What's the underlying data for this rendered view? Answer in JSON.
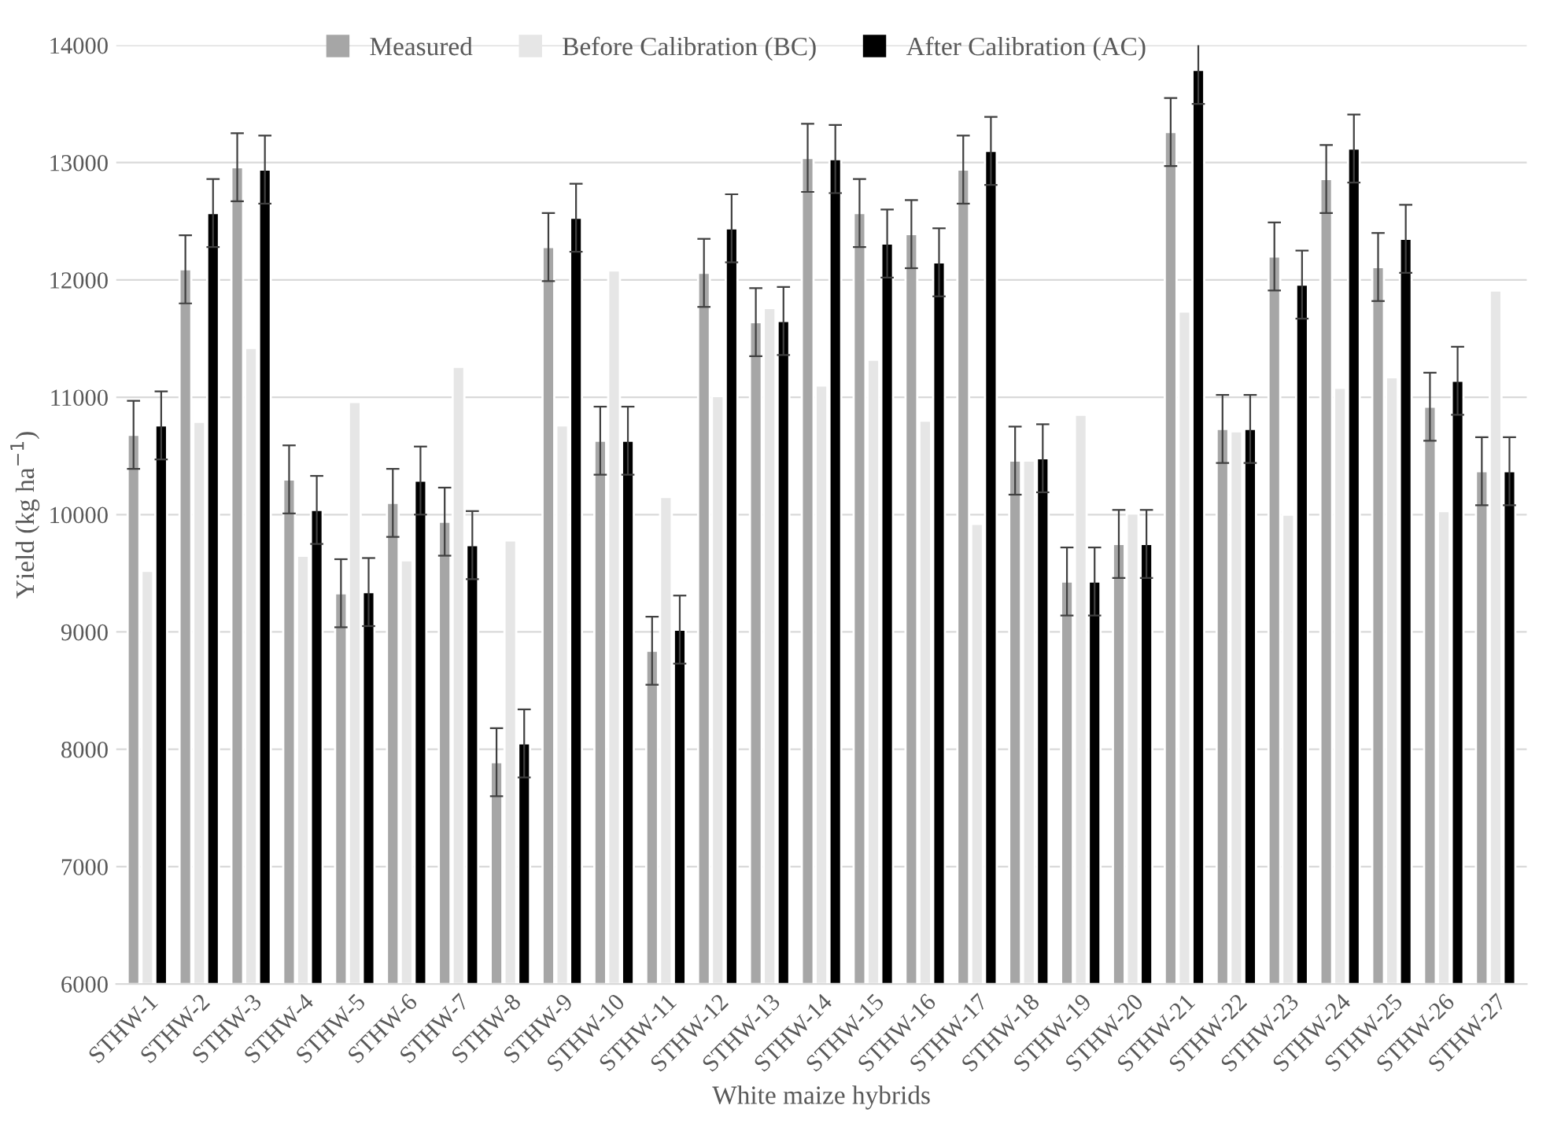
{
  "chart_data": {
    "type": "bar",
    "xlabel": "White maize hybrids",
    "ylabel": "Yield (kg ha$^{−1}$)",
    "categories": [
      "STHW-1",
      "STHW-2",
      "STHW-3",
      "STHW-4",
      "STHW-5",
      "STHW-6",
      "STHW-7",
      "STHW-8",
      "STHW-9",
      "STHW-10",
      "STHW-11",
      "STHW-12",
      "STHW-13",
      "STHW-14",
      "STHW-15",
      "STHW-16",
      "STHW-17",
      "STHW-18",
      "STHW-19",
      "STHW-20",
      "STHW-21",
      "STHW-22",
      "STHW-23",
      "STHW-24",
      "STHW-25",
      "STHW-26",
      "STHW-27"
    ],
    "series": [
      {
        "name": "Measured",
        "color": "#a6a6a6",
        "values": [
          10680,
          12090,
          12960,
          10300,
          9330,
          10100,
          9940,
          7890,
          12280,
          10630,
          8840,
          12060,
          11640,
          13040,
          12570,
          12390,
          12940,
          10460,
          9430,
          9750,
          13260,
          10730,
          12200,
          12860,
          12110,
          10920,
          10370
        ],
        "errors": [
          290,
          290,
          290,
          290,
          290,
          290,
          290,
          290,
          290,
          290,
          290,
          290,
          290,
          290,
          290,
          290,
          290,
          290,
          290,
          290,
          290,
          290,
          290,
          290,
          290,
          290,
          290
        ]
      },
      {
        "name": "Before Calibration (BC)",
        "color": "#e6e6e6",
        "values": [
          9520,
          10790,
          11420,
          9650,
          10960,
          9610,
          11260,
          9780,
          10760,
          12080,
          10150,
          11010,
          11760,
          11100,
          11320,
          10800,
          9920,
          10460,
          10850,
          10010,
          11730,
          10710,
          10000,
          11080,
          11170,
          10030,
          11910
        ]
      },
      {
        "name": "After Calibration (AC)",
        "color": "#000000",
        "values": [
          10760,
          12570,
          12940,
          10040,
          9340,
          10290,
          9740,
          8050,
          12530,
          10630,
          9020,
          12440,
          11650,
          13030,
          12310,
          12150,
          13100,
          10480,
          9430,
          9750,
          13790,
          10730,
          11960,
          13120,
          12350,
          11140,
          10370
        ],
        "errors": [
          290,
          290,
          290,
          290,
          290,
          290,
          290,
          290,
          290,
          290,
          290,
          290,
          290,
          290,
          290,
          290,
          290,
          290,
          290,
          290,
          290,
          290,
          290,
          290,
          290,
          290,
          290
        ]
      }
    ],
    "ylim": [
      6000,
      14000
    ],
    "yticks": [
      6000,
      7000,
      8000,
      9000,
      10000,
      11000,
      12000,
      13000,
      14000
    ],
    "grid": "y",
    "legend": "top"
  }
}
